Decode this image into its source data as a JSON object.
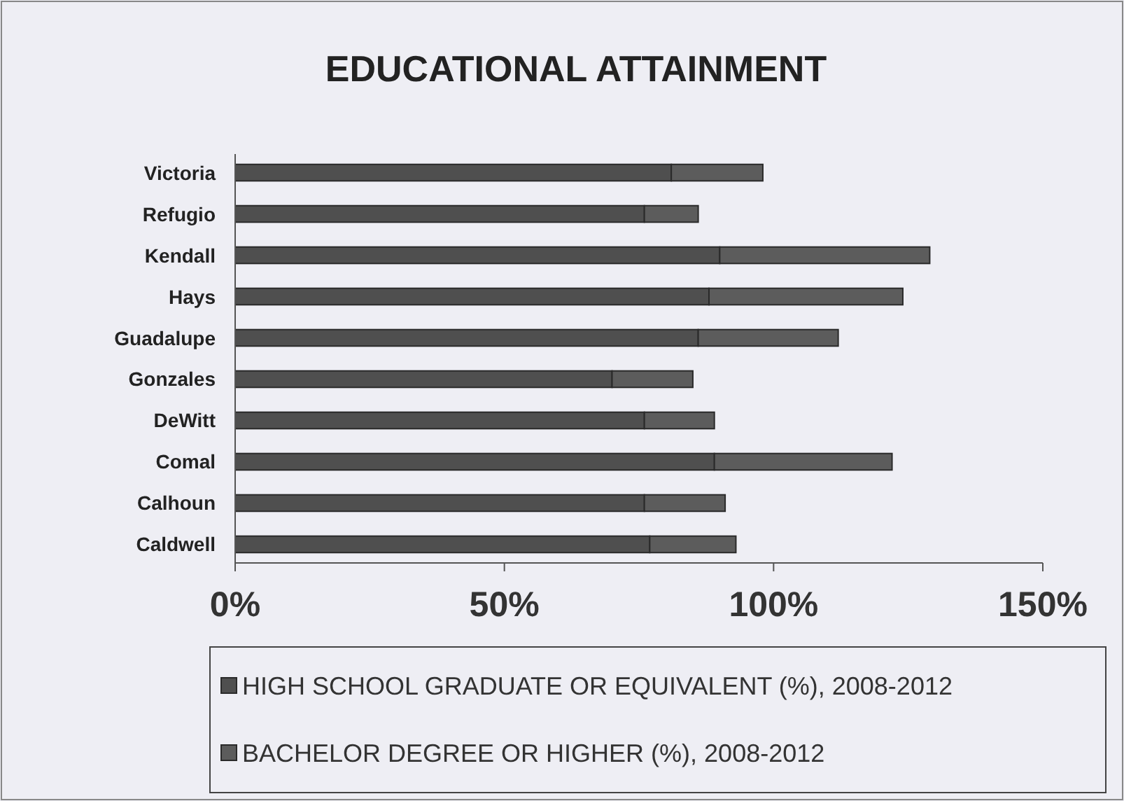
{
  "chart_data": {
    "type": "bar",
    "title": "EDUCATIONAL ATTAINMENT",
    "orientation": "horizontal",
    "stacked": true,
    "categories": [
      "Victoria",
      "Refugio",
      "Kendall",
      "Hays",
      "Guadalupe",
      "Gonzales",
      "DeWitt",
      "Comal",
      "Calhoun",
      "Caldwell"
    ],
    "series": [
      {
        "name": "HIGH SCHOOL GRADUATE OR EQUIVALENT (%), 2008-2012",
        "color": "#4f4f4f",
        "values": [
          81,
          76,
          90,
          88,
          86,
          70,
          76,
          89,
          76,
          77
        ]
      },
      {
        "name": "BACHELOR DEGREE OR HIGHER (%), 2008-2012",
        "color": "#5c5c5c",
        "values": [
          17,
          10,
          39,
          36,
          26,
          15,
          13,
          33,
          15,
          16
        ]
      }
    ],
    "xlim": [
      0,
      150
    ],
    "xticks": [
      {
        "value": 0,
        "label": "0%"
      },
      {
        "value": 50,
        "label": "50%"
      },
      {
        "value": 100,
        "label": "100%"
      },
      {
        "value": 150,
        "label": "150%"
      }
    ],
    "legend": "bottom"
  }
}
